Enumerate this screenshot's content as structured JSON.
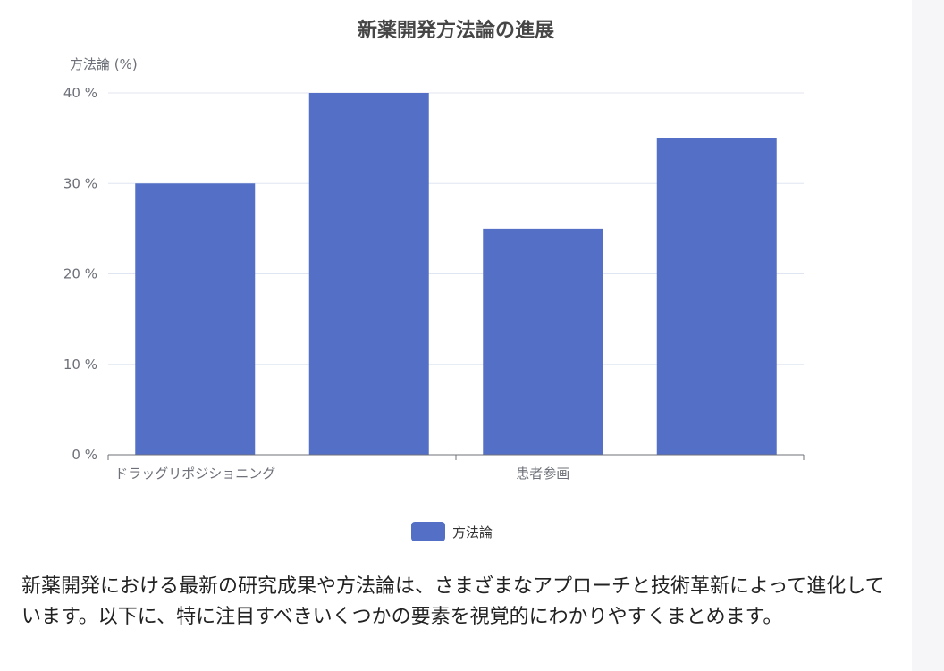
{
  "colors": {
    "bar": "#5470c6",
    "grid": "#e0e6f1",
    "axis": "#6e7079",
    "gutter": "#f6f6f8"
  },
  "chart_data": {
    "type": "bar",
    "title": "新薬開発方法論の進展",
    "ylabel": "方法論 (%)",
    "xlabel": "",
    "ylim": [
      0,
      40
    ],
    "yticks": [
      0,
      10,
      20,
      30,
      40
    ],
    "ytick_suffix": " %",
    "categories": [
      "ドラッグリポジショニング",
      "",
      "患者参画",
      ""
    ],
    "series": [
      {
        "name": "方法論",
        "values": [
          30,
          40,
          25,
          35
        ]
      }
    ],
    "legend_position": "bottom-center",
    "grid": true
  },
  "legend": {
    "label": "方法論"
  },
  "body_text": "新薬開発における最新の研究成果や方法論は、さまざまなアプローチと技術革新によって進化しています。以下に、特に注目すべきいくつかの要素を視覚的にわかりやすくまとめます。"
}
